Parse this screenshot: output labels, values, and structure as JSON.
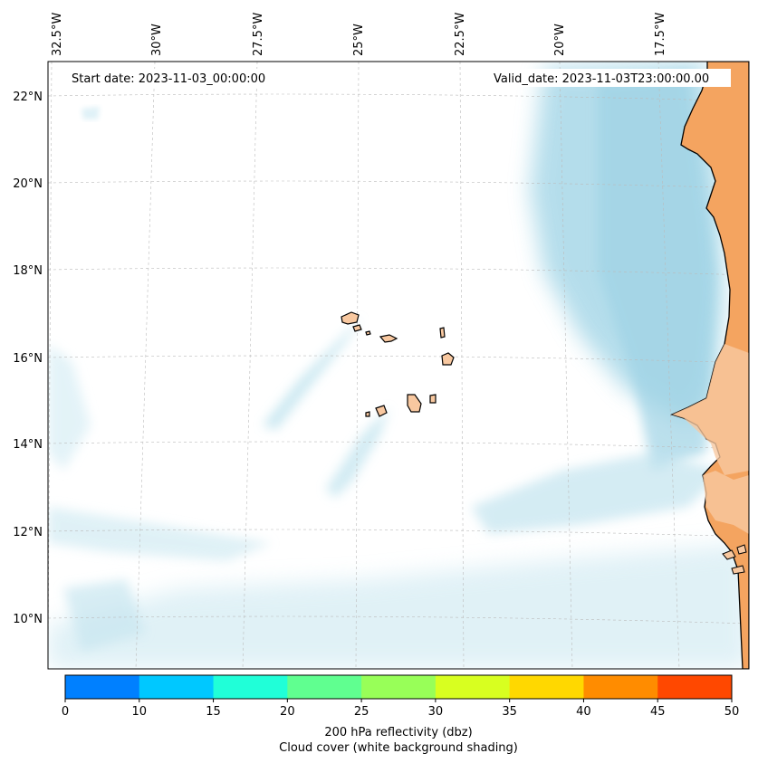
{
  "map": {
    "start_label": "Start date: 2023-11-03_00:00:00",
    "valid_label": "Valid_date: 2023-11-03T23:00:00.00",
    "lon_labels": [
      "32.5°W",
      "30°W",
      "27.5°W",
      "25°W",
      "22.5°W",
      "20°W",
      "17.5°W"
    ],
    "lat_labels": [
      "22°N",
      "20°N",
      "18°N",
      "16°N",
      "14°N",
      "12°N",
      "10°N"
    ],
    "colors": {
      "land": "#f4a460",
      "land_light": "#f8c8a0",
      "cloud": "#a8d8e8",
      "coast": "#000000",
      "grid": "#bbbbbb"
    }
  },
  "colorbar": {
    "ticks": [
      "0",
      "10",
      "15",
      "20",
      "25",
      "30",
      "35",
      "40",
      "45",
      "50"
    ],
    "colors": [
      "#0080ff",
      "#00c8ff",
      "#20ffd8",
      "#60ff90",
      "#98ff58",
      "#d8ff20",
      "#ffd800",
      "#ff8c00",
      "#ff4800"
    ],
    "label_line1": "200 hPa reflectivity (dbz)",
    "label_line2": "Cloud cover (white background shading)"
  }
}
